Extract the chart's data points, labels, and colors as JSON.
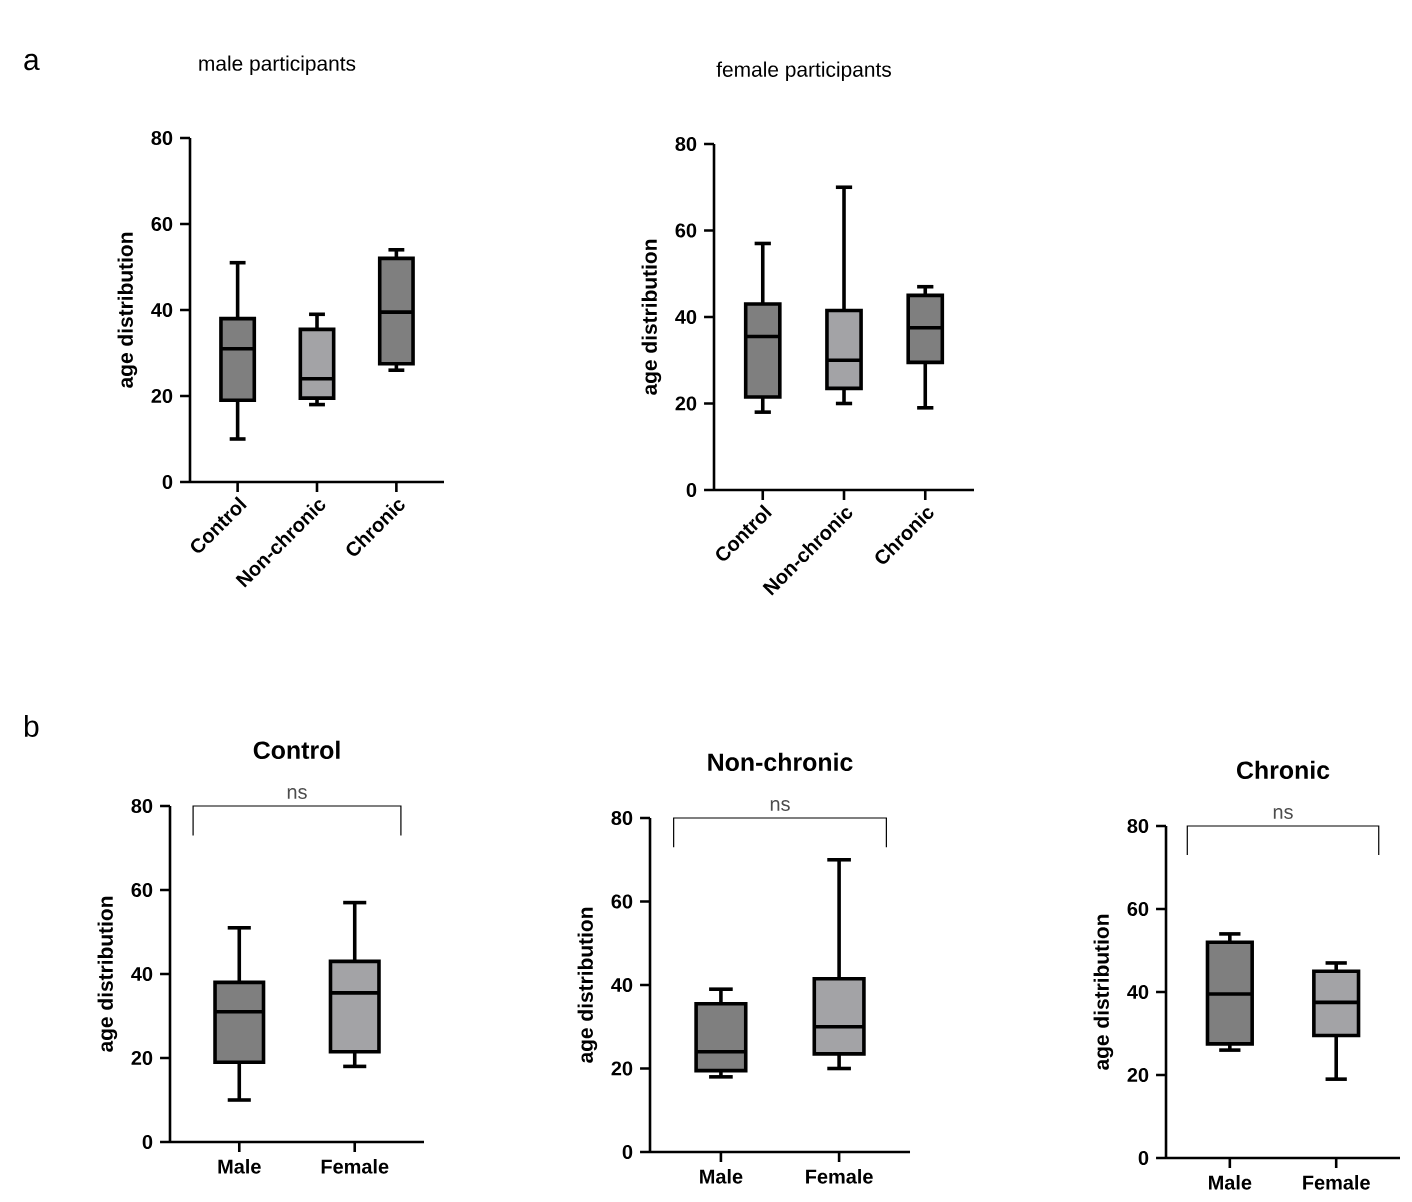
{
  "chart_data": [
    {
      "type": "box",
      "title": "male participants",
      "ylabel": "age distribution",
      "categories": [
        "Control",
        "Non-chronic",
        "Chronic"
      ],
      "ylim": [
        0,
        80
      ],
      "yticks": [
        0,
        20,
        40,
        60,
        80
      ],
      "colors": [
        "#7f7f7f",
        "#a3a3a6",
        "#7f7f7f"
      ],
      "annotations": [
        "a"
      ],
      "boxes": [
        {
          "low": 10,
          "q1": 19,
          "median": 31,
          "q3": 38,
          "high": 51
        },
        {
          "low": 18,
          "q1": 19.5,
          "median": 24,
          "q3": 35.5,
          "high": 39
        },
        {
          "low": 26,
          "q1": 27.5,
          "median": 39.5,
          "q3": 52,
          "high": 54
        }
      ]
    },
    {
      "type": "box",
      "title": "female participants",
      "ylabel": "age distribution",
      "categories": [
        "Control",
        "Non-chronic",
        "Chronic"
      ],
      "ylim": [
        0,
        80
      ],
      "yticks": [
        0,
        20,
        40,
        60,
        80
      ],
      "colors": [
        "#7f7f7f",
        "#a3a3a6",
        "#7f7f7f"
      ],
      "boxes": [
        {
          "low": 18,
          "q1": 21.5,
          "median": 35.5,
          "q3": 43,
          "high": 57
        },
        {
          "low": 20,
          "q1": 23.5,
          "median": 30,
          "q3": 41.5,
          "high": 70
        },
        {
          "low": 19,
          "q1": 29.5,
          "median": 37.5,
          "q3": 45,
          "high": 47
        }
      ]
    },
    {
      "type": "box",
      "title": "Control",
      "ylabel": "age distribution",
      "categories": [
        "Male",
        "Female"
      ],
      "ylim": [
        0,
        80
      ],
      "yticks": [
        0,
        20,
        40,
        60,
        80
      ],
      "colors": [
        "#7f7f7f",
        "#a3a3a6"
      ],
      "annotations": [
        "b",
        "ns"
      ],
      "boxes": [
        {
          "low": 10,
          "q1": 19,
          "median": 31,
          "q3": 38,
          "high": 51
        },
        {
          "low": 18,
          "q1": 21.5,
          "median": 35.5,
          "q3": 43,
          "high": 57
        }
      ]
    },
    {
      "type": "box",
      "title": "Non-chronic",
      "ylabel": "age distribution",
      "categories": [
        "Male",
        "Female"
      ],
      "ylim": [
        0,
        80
      ],
      "yticks": [
        0,
        20,
        40,
        60,
        80
      ],
      "colors": [
        "#7f7f7f",
        "#a3a3a6"
      ],
      "annotations": [
        "ns"
      ],
      "boxes": [
        {
          "low": 18,
          "q1": 19.5,
          "median": 24,
          "q3": 35.5,
          "high": 39
        },
        {
          "low": 20,
          "q1": 23.5,
          "median": 30,
          "q3": 41.5,
          "high": 70
        }
      ]
    },
    {
      "type": "box",
      "title": "Chronic",
      "ylabel": "age distribution",
      "categories": [
        "Male",
        "Female"
      ],
      "ylim": [
        0,
        80
      ],
      "yticks": [
        0,
        20,
        40,
        60,
        80
      ],
      "colors": [
        "#7f7f7f",
        "#a3a3a6"
      ],
      "annotations": [
        "ns"
      ],
      "boxes": [
        {
          "low": 26,
          "q1": 27.5,
          "median": 39.5,
          "q3": 52,
          "high": 54
        },
        {
          "low": 19,
          "q1": 29.5,
          "median": 37.5,
          "q3": 45,
          "high": 47
        }
      ]
    }
  ]
}
